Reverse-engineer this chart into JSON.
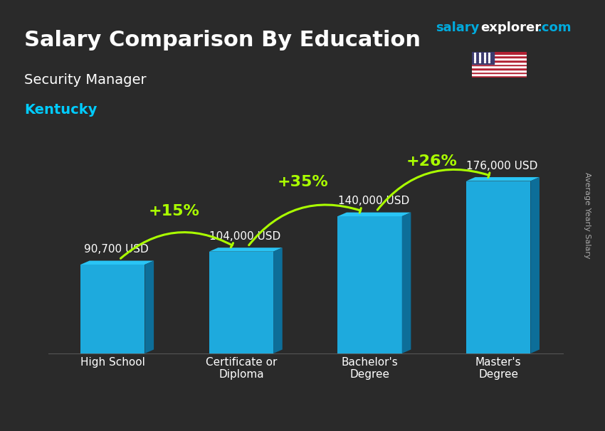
{
  "title_main": "Salary Comparison By Education",
  "title_sub": "Security Manager",
  "title_location": "Kentucky",
  "watermark": "salaryexplorer.com",
  "ylabel_side": "Average Yearly Salary",
  "categories": [
    "High School",
    "Certificate or\nDiploma",
    "Bachelor's\nDegree",
    "Master's\nDegree"
  ],
  "values": [
    90700,
    104000,
    140000,
    176000
  ],
  "value_labels": [
    "90,700 USD",
    "104,000 USD",
    "140,000 USD",
    "176,000 USD"
  ],
  "pct_labels": [
    "+15%",
    "+35%",
    "+26%"
  ],
  "bar_color_top": "#29c4f5",
  "bar_color_mid": "#1eaadd",
  "bar_color_bot": "#1590c0",
  "bar_color_side": "#0d6e99",
  "background_color": "#2a2a2a",
  "title_color": "#ffffff",
  "subtitle_color": "#ffffff",
  "location_color": "#00ccff",
  "value_label_color": "#ffffff",
  "pct_color": "#aaff00",
  "arrow_color": "#aaff00",
  "watermark_salary_color": "#00aadd",
  "watermark_explorer_color": "#ffffff",
  "xlim": [
    -0.5,
    3.5
  ],
  "ylim": [
    0,
    220000
  ],
  "bar_width": 0.5
}
